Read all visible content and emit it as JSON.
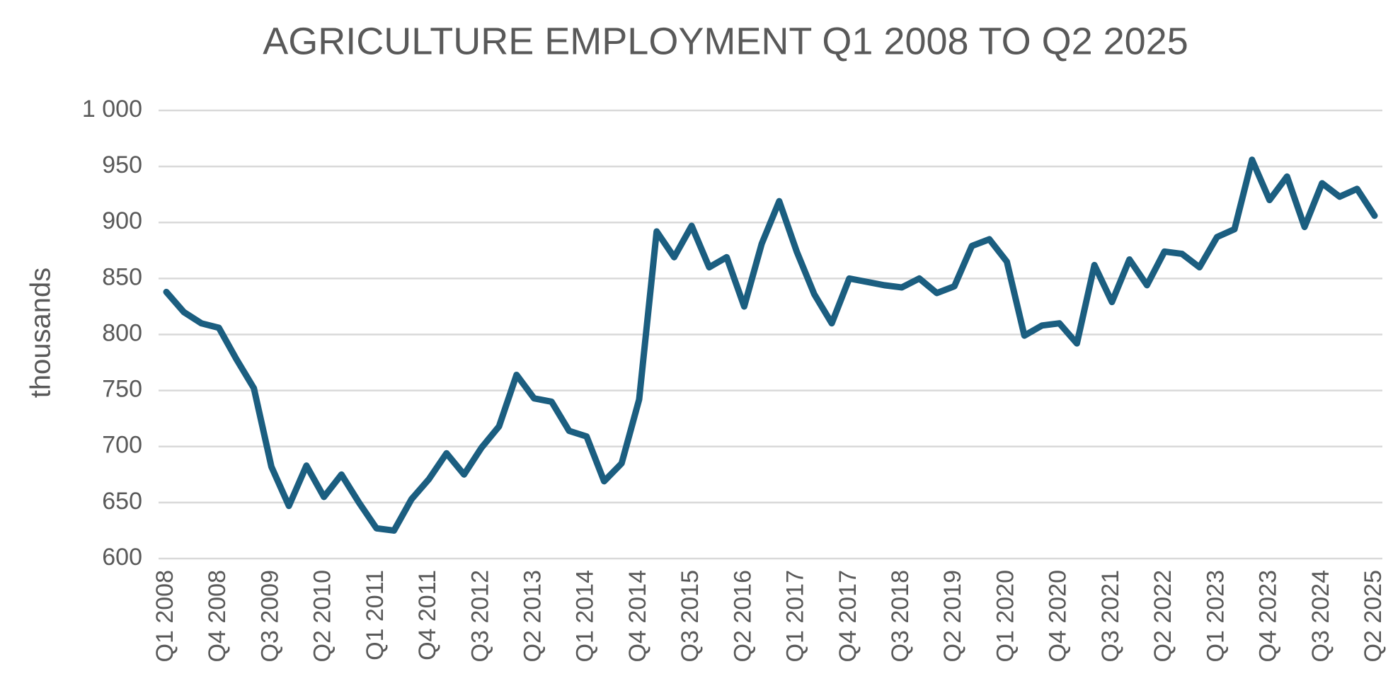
{
  "chart_data": {
    "type": "line",
    "title": "AGRICULTURE EMPLOYMENT Q1 2008 TO Q2 2025",
    "y_label": "thousands",
    "categories": [
      "Q1 2008",
      null,
      null,
      "Q4 2008",
      null,
      null,
      "Q3 2009",
      null,
      null,
      "Q2 2010",
      null,
      null,
      "Q1 2011",
      null,
      null,
      "Q4 2011",
      null,
      null,
      "Q3 2012",
      null,
      null,
      "Q2 2013",
      null,
      null,
      "Q1 2014",
      null,
      null,
      "Q4 2014",
      null,
      null,
      "Q3 2015",
      null,
      null,
      "Q2 2016",
      null,
      null,
      "Q1 2017",
      null,
      null,
      "Q4 2017",
      null,
      null,
      "Q3 2018",
      null,
      null,
      "Q2 2019",
      null,
      null,
      "Q1 2020",
      null,
      null,
      "Q4 2020",
      null,
      null,
      "Q3 2021",
      null,
      null,
      "Q2 2022",
      null,
      null,
      "Q1 2023",
      null,
      null,
      "Q4 2023",
      null,
      null,
      "Q3 2024",
      null,
      null,
      "Q2 2025"
    ],
    "series": [
      {
        "name": "Agriculture employment",
        "color": "#1b5e80",
        "values": [
          838,
          820,
          810,
          806,
          778,
          752,
          682,
          647,
          683,
          655,
          675,
          650,
          627,
          625,
          653,
          671,
          694,
          675,
          699,
          718,
          764,
          743,
          740,
          714,
          709,
          669,
          685,
          742,
          892,
          869,
          897,
          860,
          869,
          825,
          881,
          919,
          874,
          836,
          810,
          850,
          847,
          844,
          842,
          850,
          837,
          843,
          879,
          885,
          865,
          799,
          808,
          810,
          792,
          862,
          829,
          867,
          844,
          874,
          872,
          860,
          887,
          894,
          956,
          920,
          941,
          896,
          935,
          923,
          930,
          906
        ]
      }
    ],
    "ylim": [
      600,
      1000
    ],
    "yticks": [
      600,
      650,
      700,
      750,
      800,
      850,
      900,
      950,
      {
        "value": 1000,
        "label": "1 000"
      }
    ],
    "grid": true
  }
}
